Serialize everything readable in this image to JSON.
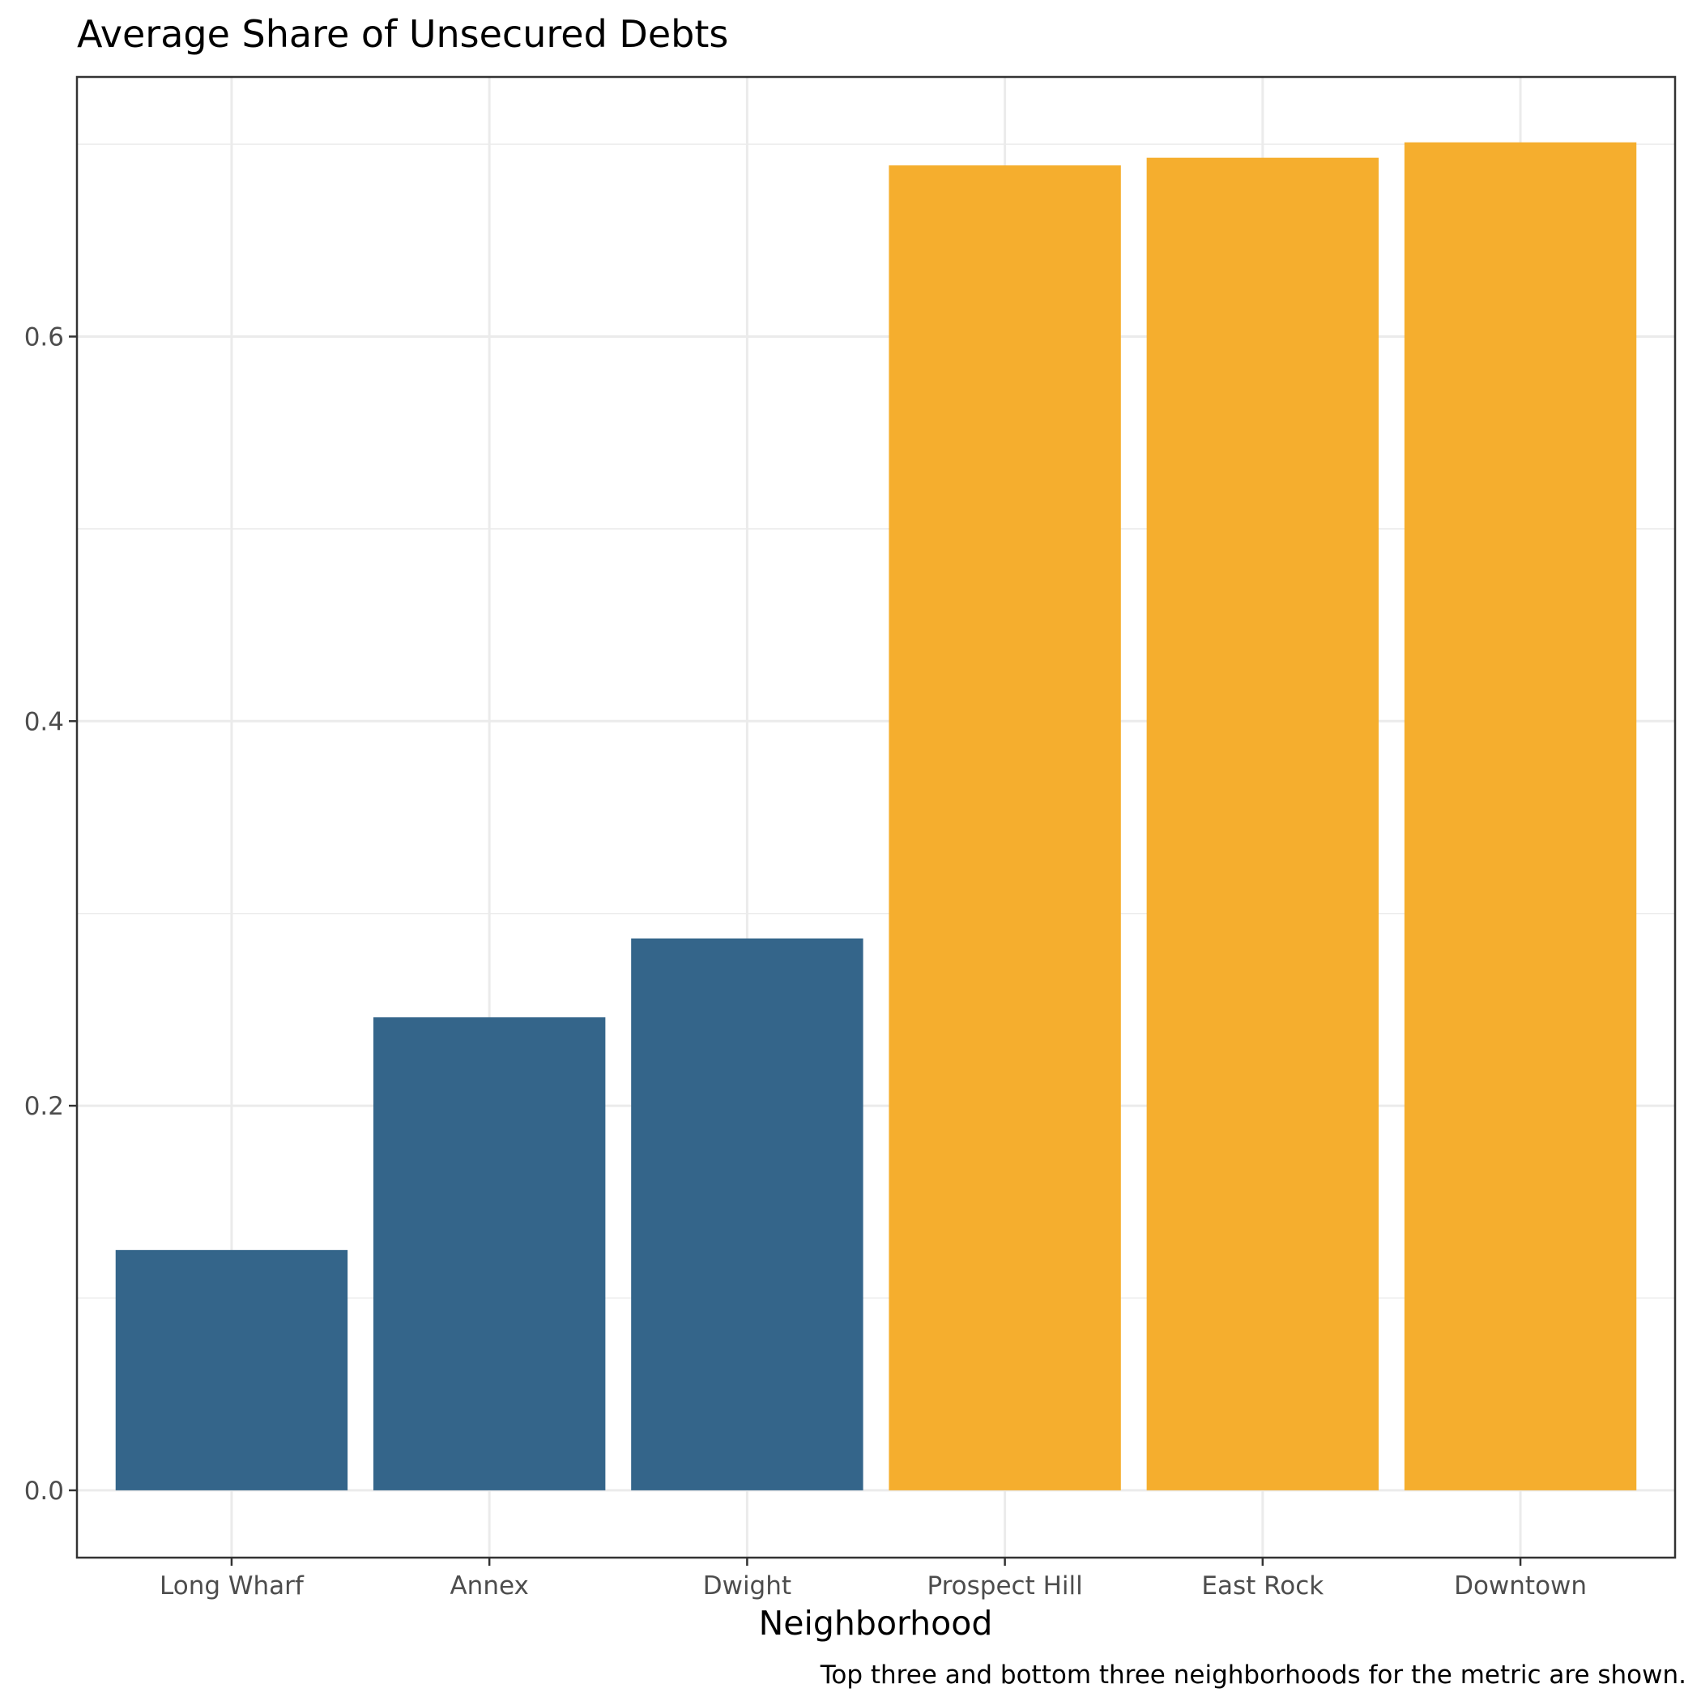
{
  "chart_data": {
    "type": "bar",
    "title": "Average Share of Unsecured Debts",
    "xlabel": "Neighborhood",
    "ylabel": "",
    "caption": "Top three and bottom three neighborhoods for the metric are shown.",
    "categories": [
      "Long Wharf",
      "Annex",
      "Dwight",
      "Prospect Hill",
      "East Rock",
      "Downtown"
    ],
    "values": [
      0.125,
      0.246,
      0.287,
      0.689,
      0.693,
      0.701
    ],
    "bar_colors": [
      "#34658a",
      "#34658a",
      "#34658a",
      "#f5ae2e",
      "#f5ae2e",
      "#f5ae2e"
    ],
    "ylim": [
      -0.035,
      0.735
    ],
    "yticks": [
      0.0,
      0.2,
      0.4,
      0.6
    ],
    "ytick_labels": [
      "0.0",
      "0.2",
      "0.4",
      "0.6"
    ],
    "grid": true,
    "legend": "none"
  }
}
